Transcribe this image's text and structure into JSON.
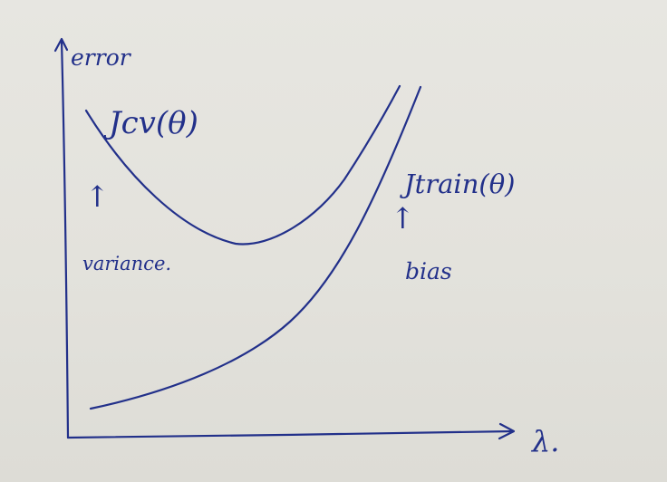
{
  "labels": {
    "y_axis": "error",
    "x_axis": "λ.",
    "cv_curve": "Jcv(θ)",
    "train_curve": "Jtrain(θ)",
    "variance_arrow": "↑",
    "variance_text": "variance.",
    "bias_arrow": "↑",
    "bias_text": "bias"
  },
  "colors": {
    "ink": "#22308a",
    "paper": "#e5e4de"
  }
}
